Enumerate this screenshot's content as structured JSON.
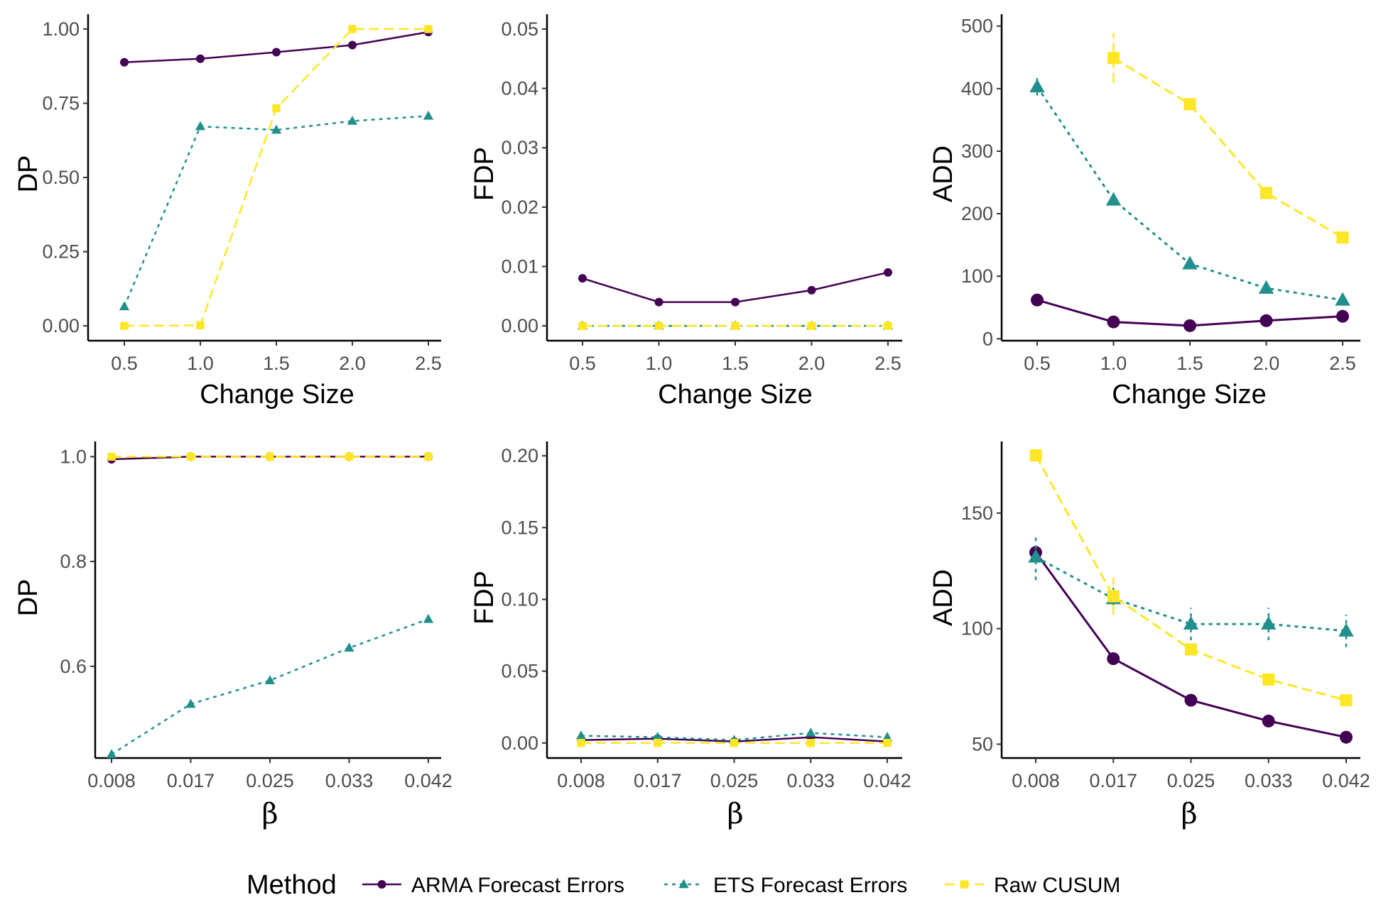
{
  "methods": [
    {
      "name": "ARMA Forecast Errors",
      "color": "#440154",
      "dash": "",
      "marker": "circle"
    },
    {
      "name": "ETS Forecast Errors",
      "color": "#21908c",
      "dash": "5,6",
      "marker": "triangle"
    },
    {
      "name": "Raw CUSUM",
      "color": "#fde725",
      "dash": "14,7",
      "marker": "square"
    }
  ],
  "legend": {
    "title": "Method",
    "position": "bottom"
  },
  "chart_data": [
    {
      "type": "line",
      "ylabel": "DP",
      "xlabel": "Change Size",
      "categories": [
        "0.5",
        "1.0",
        "1.5",
        "2.0",
        "2.5"
      ],
      "ylim": [
        -0.05,
        1.05
      ],
      "yticks": [
        0,
        0.25,
        0.5,
        0.75,
        1.0
      ],
      "yticklabels": [
        "0.00",
        "0.25",
        "0.50",
        "0.75",
        "1.00"
      ],
      "grid": false,
      "markerSize": "small",
      "series": [
        {
          "name": "ARMA Forecast Errors",
          "values": [
            0.888,
            0.9,
            0.922,
            0.946,
            0.99
          ]
        },
        {
          "name": "ETS Forecast Errors",
          "values": [
            0.065,
            0.672,
            0.66,
            0.69,
            0.707
          ]
        },
        {
          "name": "Raw CUSUM",
          "values": [
            0.0,
            0.002,
            0.733,
            1.0,
            1.0
          ]
        }
      ]
    },
    {
      "type": "line",
      "ylabel": "FDP",
      "xlabel": "Change Size",
      "categories": [
        "0.5",
        "1.0",
        "1.5",
        "2.0",
        "2.5"
      ],
      "ylim": [
        -0.0025,
        0.0525
      ],
      "yticks": [
        0,
        0.01,
        0.02,
        0.03,
        0.04,
        0.05
      ],
      "yticklabels": [
        "0.00",
        "0.01",
        "0.02",
        "0.03",
        "0.04",
        "0.05"
      ],
      "grid": false,
      "markerSize": "small",
      "series": [
        {
          "name": "ARMA Forecast Errors",
          "values": [
            0.008,
            0.004,
            0.004,
            0.006,
            0.009
          ]
        },
        {
          "name": "ETS Forecast Errors",
          "values": [
            0.0,
            0.0,
            0.0,
            0.0,
            0.0
          ]
        },
        {
          "name": "Raw CUSUM",
          "values": [
            0.0,
            0.0,
            0.0,
            0.0,
            0.0
          ]
        }
      ]
    },
    {
      "type": "line",
      "ylabel": "ADD",
      "xlabel": "Change Size",
      "categories": [
        "0.5",
        "1.0",
        "1.5",
        "2.0",
        "2.5"
      ],
      "ylim": [
        -3,
        519
      ],
      "yticks": [
        0,
        100,
        200,
        300,
        400,
        500
      ],
      "yticklabels": [
        "0",
        "100",
        "200",
        "300",
        "400",
        "500"
      ],
      "grid": false,
      "markerSize": "large",
      "series": [
        {
          "name": "ARMA Forecast Errors",
          "values": [
            62,
            27,
            21,
            29,
            36
          ],
          "errors": [
            0,
            0,
            0,
            0,
            0
          ]
        },
        {
          "name": "ETS Forecast Errors",
          "values": [
            403,
            222,
            120,
            81,
            62
          ],
          "errors": [
            14,
            0,
            0,
            0,
            0
          ]
        },
        {
          "name": "Raw CUSUM",
          "values": [
            null,
            449,
            375,
            233,
            162
          ],
          "errors": [
            0,
            40,
            0,
            0,
            0
          ]
        }
      ]
    },
    {
      "type": "line",
      "ylabel": "DP",
      "xlabel": "β",
      "categories": [
        "0.008",
        "0.017",
        "0.025",
        "0.033",
        "0.042"
      ],
      "ylim": [
        0.425,
        1.029
      ],
      "yticks": [
        0.6,
        0.8,
        1.0
      ],
      "yticklabels": [
        "0.6",
        "0.8",
        "1.0"
      ],
      "grid": false,
      "markerSize": "small",
      "series": [
        {
          "name": "ARMA Forecast Errors",
          "values": [
            0.995,
            1.0,
            1.0,
            1.0,
            1.0
          ]
        },
        {
          "name": "ETS Forecast Errors",
          "values": [
            0.432,
            0.528,
            0.573,
            0.635,
            0.69
          ]
        },
        {
          "name": "Raw CUSUM",
          "values": [
            1.0,
            1.0,
            1.0,
            1.0,
            1.0
          ]
        }
      ]
    },
    {
      "type": "line",
      "ylabel": "FDP",
      "xlabel": "β",
      "categories": [
        "0.008",
        "0.017",
        "0.025",
        "0.033",
        "0.042"
      ],
      "ylim": [
        -0.0105,
        0.21
      ],
      "yticks": [
        0,
        0.05,
        0.1,
        0.15,
        0.2
      ],
      "yticklabels": [
        "0.00",
        "0.05",
        "0.10",
        "0.15",
        "0.20"
      ],
      "grid": false,
      "markerSize": "small",
      "series": [
        {
          "name": "ARMA Forecast Errors",
          "values": [
            0.002,
            0.003,
            0.001,
            0.004,
            0.001
          ]
        },
        {
          "name": "ETS Forecast Errors",
          "values": [
            0.005,
            0.004,
            0.002,
            0.007,
            0.004
          ]
        },
        {
          "name": "Raw CUSUM",
          "values": [
            0.0,
            0.0,
            0.0,
            0.0,
            0.0
          ]
        }
      ]
    },
    {
      "type": "line",
      "ylabel": "ADD",
      "xlabel": "β",
      "categories": [
        "0.008",
        "0.017",
        "0.025",
        "0.033",
        "0.042"
      ],
      "ylim": [
        44,
        181
      ],
      "yticks": [
        50,
        100,
        150
      ],
      "yticklabels": [
        "50",
        "100",
        "150"
      ],
      "grid": false,
      "markerSize": "large",
      "series": [
        {
          "name": "ARMA Forecast Errors",
          "values": [
            133,
            87,
            69,
            60,
            53
          ],
          "errors": [
            0,
            0,
            0,
            0,
            0
          ]
        },
        {
          "name": "ETS Forecast Errors",
          "values": [
            131,
            113,
            102,
            102,
            99
          ],
          "errors": [
            10,
            7,
            7,
            7,
            7
          ]
        },
        {
          "name": "Raw CUSUM",
          "values": [
            175,
            114,
            91,
            78,
            69
          ],
          "errors": [
            0,
            8,
            0,
            0,
            0
          ]
        }
      ]
    }
  ]
}
